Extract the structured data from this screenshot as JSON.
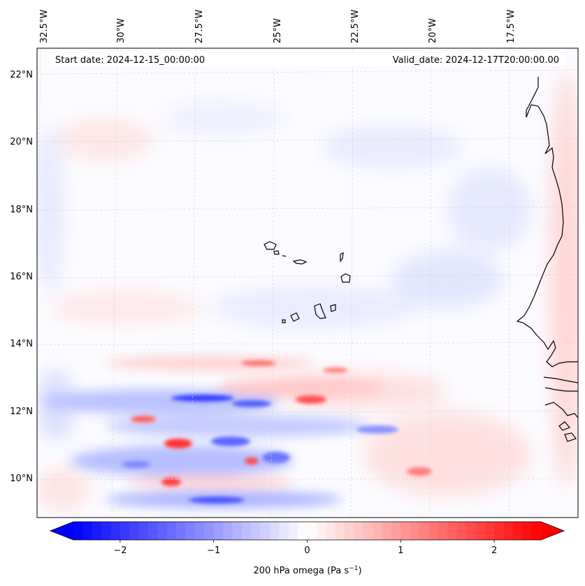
{
  "header": {
    "start_date": "Start date: 2024-12-15_00:00:00",
    "valid_date": "Valid_date: 2024-12-17T20:00:00.00"
  },
  "map": {
    "lon_labels": [
      "32.5°W",
      "30°W",
      "27.5°W",
      "25°W",
      "22.5°W",
      "20°W",
      "17.5°W"
    ],
    "lat_labels": [
      "22°N",
      "20°N",
      "18°N",
      "16°N",
      "14°N",
      "12°N",
      "10°N"
    ],
    "field": "200 hPa omega",
    "gridlines": true,
    "coastline_color": "#000000"
  },
  "colorbar": {
    "label_main": "200 hPa omega (Pa s",
    "label_exp": "−1",
    "label_close": ")",
    "ticks": [
      "−2",
      "−1",
      "0",
      "1",
      "2"
    ],
    "tick_values": [
      -2,
      -1,
      0,
      1,
      2
    ],
    "range": [
      -2.5,
      2.5
    ],
    "colors": {
      "min": "#0000ff",
      "mid": "#ffffff",
      "max": "#ff0000"
    },
    "extend": "both"
  }
}
